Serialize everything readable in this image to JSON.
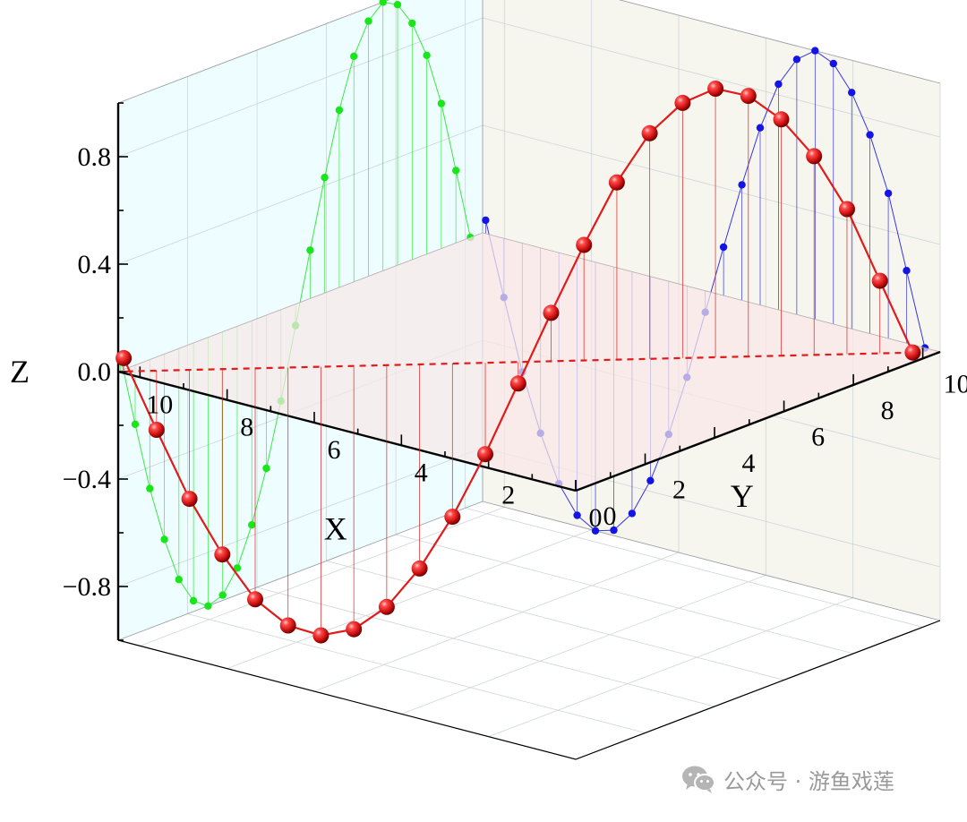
{
  "chart_data": {
    "type": "scatter",
    "subtype": "3d-scatter-with-drop-lines-and-wall-projections",
    "title": "",
    "x_axis": {
      "label": "X",
      "ticks": [
        "0",
        "2",
        "4",
        "6",
        "8",
        "10"
      ],
      "range": [
        0,
        10.5
      ]
    },
    "y_axis": {
      "label": "Y",
      "ticks": [
        "0",
        "2",
        "4",
        "6",
        "8",
        "10"
      ],
      "range": [
        0,
        10.5
      ]
    },
    "z_axis": {
      "label": "Z",
      "ticks": [
        "0.8",
        "0.4",
        "0.0",
        "−0.4",
        "−0.8"
      ],
      "range": [
        -1,
        1
      ]
    },
    "grid": true,
    "legend": "none",
    "series": [
      {
        "role": "main-3d-curve",
        "marker": "sphere",
        "color": "#e11a1a",
        "points": [
          [
            0.35,
            10.15,
            0.0
          ],
          [
            0.77,
            9.73,
            0.27
          ],
          [
            1.19,
            9.31,
            0.54
          ],
          [
            1.61,
            8.89,
            0.74
          ],
          [
            2.03,
            8.47,
            0.88
          ],
          [
            2.45,
            8.05,
            0.97
          ],
          [
            2.87,
            7.63,
            1.0
          ],
          [
            3.29,
            7.21,
            0.95
          ],
          [
            3.71,
            6.79,
            0.84
          ],
          [
            4.13,
            6.37,
            0.66
          ],
          [
            4.55,
            5.95,
            0.43
          ],
          [
            4.97,
            5.53,
            0.18
          ],
          [
            5.39,
            5.11,
            -0.08
          ],
          [
            5.81,
            4.69,
            -0.34
          ],
          [
            6.23,
            4.27,
            -0.57
          ],
          [
            6.65,
            3.85,
            -0.76
          ],
          [
            7.07,
            3.43,
            -0.9
          ],
          [
            7.49,
            3.01,
            -0.98
          ],
          [
            7.91,
            2.59,
            -1.0
          ],
          [
            8.33,
            2.17,
            -0.96
          ],
          [
            8.75,
            1.75,
            -0.86
          ],
          [
            9.17,
            1.33,
            -0.69
          ],
          [
            9.59,
            0.91,
            -0.48
          ],
          [
            10.01,
            0.49,
            -0.22
          ],
          [
            10.43,
            0.07,
            0.05
          ]
        ]
      },
      {
        "role": "projection-on-xz-wall",
        "marker": "dot",
        "color": "#1414e6",
        "points": [
          [
            0.35,
            0.0
          ],
          [
            0.77,
            0.27
          ],
          [
            1.19,
            0.54
          ],
          [
            1.61,
            0.74
          ],
          [
            2.03,
            0.88
          ],
          [
            2.45,
            0.97
          ],
          [
            2.87,
            1.0
          ],
          [
            3.29,
            0.95
          ],
          [
            3.71,
            0.84
          ],
          [
            4.13,
            0.66
          ],
          [
            4.55,
            0.43
          ],
          [
            4.97,
            0.18
          ],
          [
            5.39,
            -0.08
          ],
          [
            5.81,
            -0.34
          ],
          [
            6.23,
            -0.57
          ],
          [
            6.65,
            -0.76
          ],
          [
            7.07,
            -0.9
          ],
          [
            7.49,
            -0.98
          ],
          [
            7.91,
            -1.0
          ],
          [
            8.33,
            -0.96
          ],
          [
            8.75,
            -0.86
          ],
          [
            9.17,
            -0.69
          ],
          [
            9.59,
            -0.48
          ],
          [
            10.01,
            -0.22
          ],
          [
            10.43,
            0.05
          ]
        ]
      },
      {
        "role": "projection-on-yz-wall",
        "marker": "dot",
        "color": "#19e619",
        "points": [
          [
            10.15,
            0.0
          ],
          [
            9.73,
            0.27
          ],
          [
            9.31,
            0.54
          ],
          [
            8.89,
            0.74
          ],
          [
            8.47,
            0.88
          ],
          [
            8.05,
            0.97
          ],
          [
            7.63,
            1.0
          ],
          [
            7.21,
            0.95
          ],
          [
            6.79,
            0.84
          ],
          [
            6.37,
            0.66
          ],
          [
            5.95,
            0.43
          ],
          [
            5.53,
            0.18
          ],
          [
            5.11,
            -0.08
          ],
          [
            4.69,
            -0.34
          ],
          [
            4.27,
            -0.57
          ],
          [
            3.85,
            -0.76
          ],
          [
            3.43,
            -0.9
          ],
          [
            3.01,
            -0.98
          ],
          [
            2.59,
            -1.0
          ],
          [
            2.17,
            -0.96
          ],
          [
            1.75,
            -0.86
          ],
          [
            1.33,
            -0.69
          ],
          [
            0.91,
            -0.48
          ],
          [
            0.49,
            -0.22
          ],
          [
            0.07,
            0.05
          ]
        ]
      }
    ]
  },
  "colors": {
    "xz_wall": "#eefdff",
    "yz_wall": "#f6f5ee",
    "xy_plane": "#f8e8e8",
    "main_curve": "#e11a1a",
    "xz_projection": "#1414e6",
    "yz_projection": "#19e619"
  },
  "watermark": {
    "text": "公众号 · 游鱼戏莲",
    "icon": "wechat-icon"
  }
}
